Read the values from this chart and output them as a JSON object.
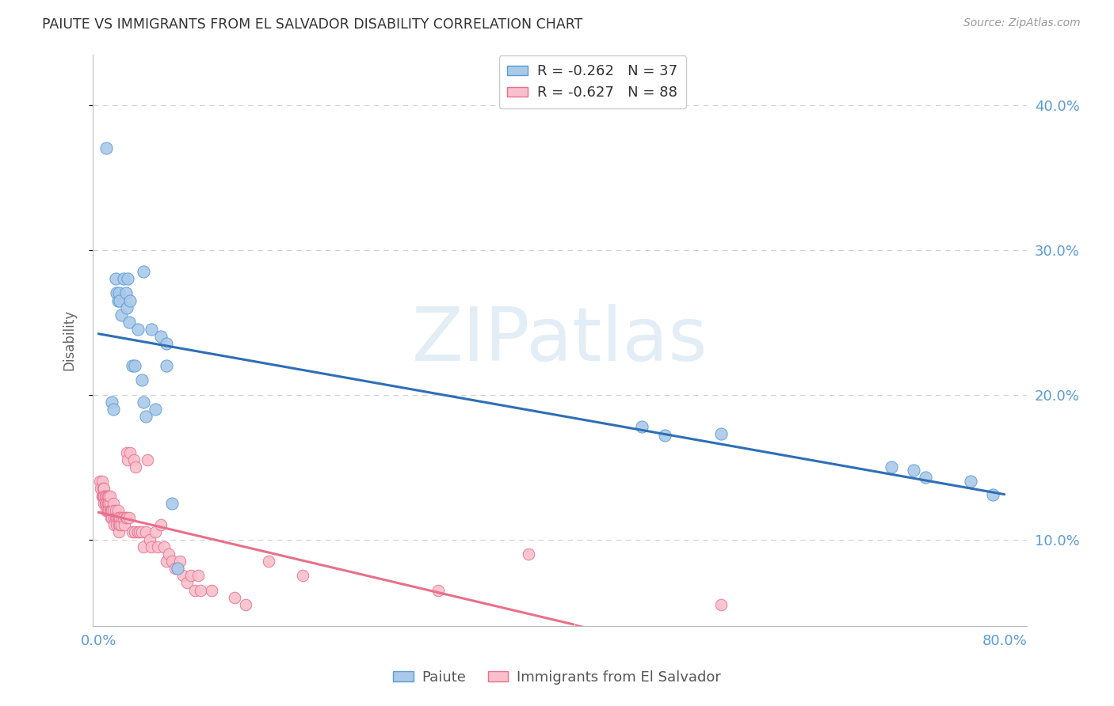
{
  "title": "PAIUTE VS IMMIGRANTS FROM EL SALVADOR DISABILITY CORRELATION CHART",
  "source": "Source: ZipAtlas.com",
  "ylabel": "Disability",
  "legend_labels": [
    "Paiute",
    "Immigrants from El Salvador"
  ],
  "watermark_text": "ZIPatlas",
  "ylim": [
    0.04,
    0.435
  ],
  "xlim": [
    -0.005,
    0.82
  ],
  "background_color": "#ffffff",
  "grid_color": "#d0d0d0",
  "title_color": "#333333",
  "axis_tick_color": "#5b9bd5",
  "paiute_fill_color": "#aac9e8",
  "paiute_edge_color": "#5b9bd5",
  "elsalvador_fill_color": "#f9c0cb",
  "elsalvador_edge_color": "#e87090",
  "paiute_line_color": "#2e6fb5",
  "elsalvador_line_color": "#e8708a",
  "paiute_x": [
    0.007,
    0.012,
    0.013,
    0.015,
    0.016,
    0.017,
    0.018,
    0.019,
    0.02,
    0.022,
    0.024,
    0.025,
    0.026,
    0.027,
    0.028,
    0.03,
    0.032,
    0.035,
    0.038,
    0.04,
    0.04,
    0.042,
    0.047,
    0.05,
    0.055,
    0.06,
    0.06,
    0.065,
    0.07,
    0.48,
    0.5,
    0.55,
    0.7,
    0.72,
    0.73,
    0.77,
    0.79
  ],
  "paiute_y": [
    0.37,
    0.195,
    0.19,
    0.28,
    0.27,
    0.265,
    0.27,
    0.265,
    0.255,
    0.28,
    0.27,
    0.26,
    0.28,
    0.25,
    0.265,
    0.22,
    0.22,
    0.245,
    0.21,
    0.195,
    0.285,
    0.185,
    0.245,
    0.19,
    0.24,
    0.235,
    0.22,
    0.125,
    0.08,
    0.178,
    0.172,
    0.173,
    0.15,
    0.148,
    0.143,
    0.14,
    0.131
  ],
  "elsalvador_x": [
    0.001,
    0.002,
    0.003,
    0.003,
    0.004,
    0.004,
    0.005,
    0.005,
    0.005,
    0.006,
    0.006,
    0.007,
    0.007,
    0.007,
    0.008,
    0.008,
    0.008,
    0.009,
    0.009,
    0.009,
    0.01,
    0.01,
    0.01,
    0.011,
    0.011,
    0.012,
    0.012,
    0.013,
    0.013,
    0.014,
    0.014,
    0.015,
    0.015,
    0.016,
    0.016,
    0.017,
    0.017,
    0.018,
    0.018,
    0.018,
    0.019,
    0.019,
    0.02,
    0.021,
    0.022,
    0.023,
    0.024,
    0.025,
    0.025,
    0.026,
    0.027,
    0.028,
    0.03,
    0.031,
    0.032,
    0.033,
    0.035,
    0.036,
    0.038,
    0.04,
    0.042,
    0.043,
    0.045,
    0.047,
    0.05,
    0.052,
    0.055,
    0.058,
    0.06,
    0.062,
    0.065,
    0.068,
    0.07,
    0.072,
    0.075,
    0.078,
    0.082,
    0.085,
    0.088,
    0.09,
    0.1,
    0.12,
    0.13,
    0.15,
    0.18,
    0.3,
    0.38,
    0.55
  ],
  "elsalvador_y": [
    0.14,
    0.135,
    0.14,
    0.13,
    0.135,
    0.13,
    0.135,
    0.13,
    0.125,
    0.13,
    0.125,
    0.13,
    0.125,
    0.12,
    0.13,
    0.125,
    0.12,
    0.13,
    0.125,
    0.12,
    0.125,
    0.12,
    0.13,
    0.12,
    0.115,
    0.12,
    0.115,
    0.125,
    0.12,
    0.115,
    0.11,
    0.12,
    0.115,
    0.115,
    0.11,
    0.115,
    0.12,
    0.11,
    0.115,
    0.105,
    0.115,
    0.11,
    0.11,
    0.115,
    0.115,
    0.11,
    0.115,
    0.115,
    0.16,
    0.155,
    0.115,
    0.16,
    0.105,
    0.155,
    0.105,
    0.15,
    0.105,
    0.105,
    0.105,
    0.095,
    0.105,
    0.155,
    0.1,
    0.095,
    0.105,
    0.095,
    0.11,
    0.095,
    0.085,
    0.09,
    0.085,
    0.08,
    0.08,
    0.085,
    0.075,
    0.07,
    0.075,
    0.065,
    0.075,
    0.065,
    0.065,
    0.06,
    0.055,
    0.085,
    0.075,
    0.065,
    0.09,
    0.055
  ]
}
